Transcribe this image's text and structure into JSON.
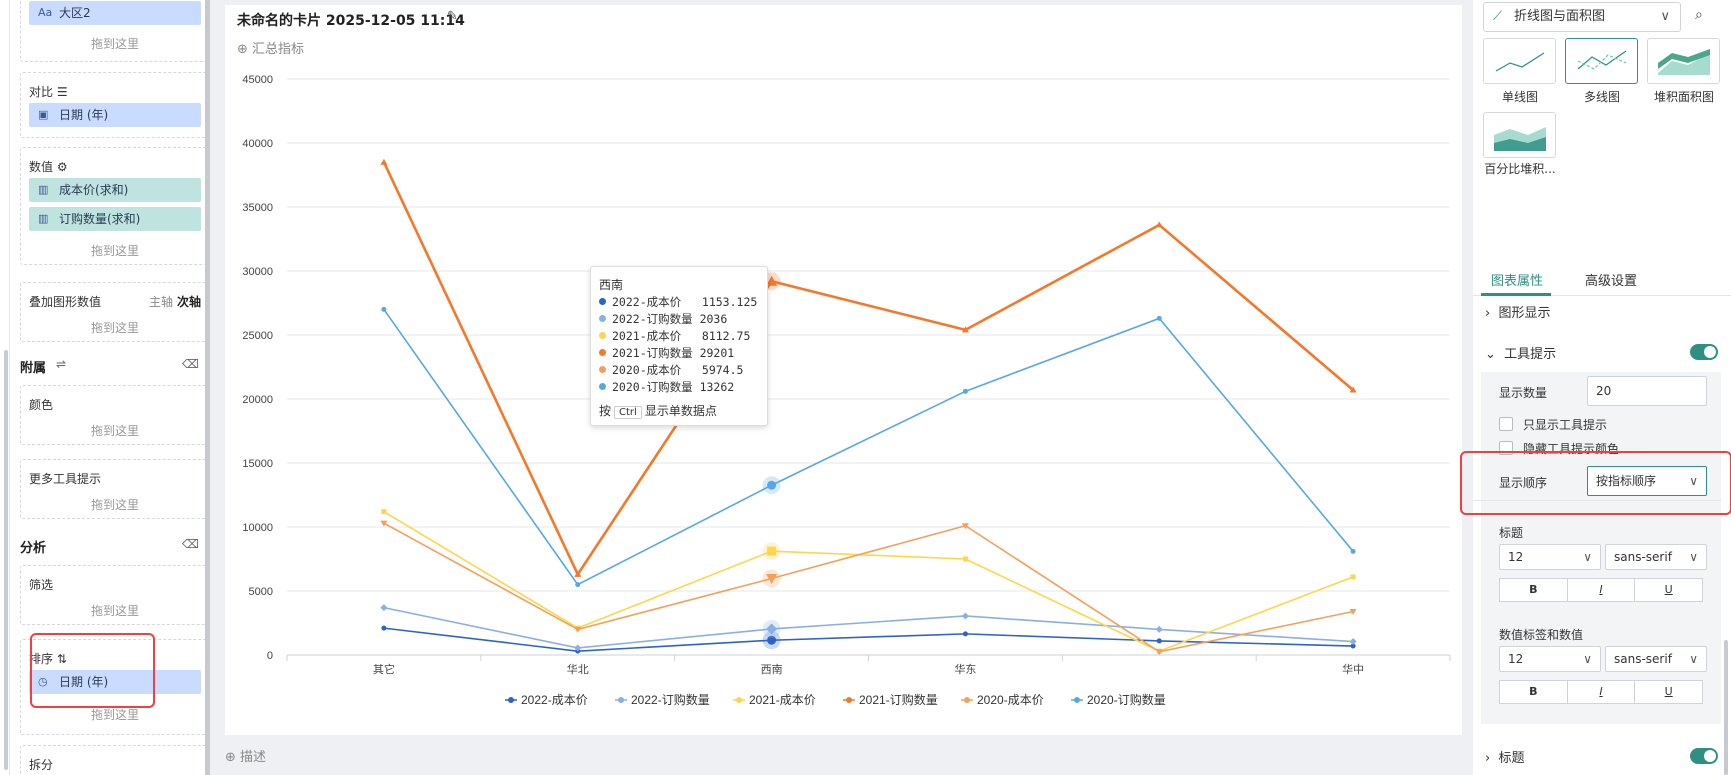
{
  "left": {
    "region_field": {
      "icon": "Aa",
      "label": "大区2",
      "drop": "拖到这里"
    },
    "compare": {
      "title": "对比",
      "pill": "日期 (年)"
    },
    "values": {
      "title": "数值",
      "pills": [
        "成本价(求和)",
        "订购数量(求和)"
      ],
      "drop": "拖到这里"
    },
    "overlay": {
      "title": "叠加图形数值",
      "main_axis": "主轴",
      "sub_axis": "次轴",
      "drop": "拖到这里"
    },
    "attach": {
      "title": "附属"
    },
    "color": {
      "title": "颜色",
      "drop": "拖到这里"
    },
    "more_tooltip": {
      "title": "更多工具提示",
      "drop": "拖到这里"
    },
    "analysis": {
      "title": "分析"
    },
    "filter": {
      "title": "筛选",
      "drop": "拖到这里"
    },
    "sort": {
      "title": "排序",
      "pill": "日期 (年)",
      "drop": "拖到这里"
    },
    "split": {
      "title": "拆分"
    }
  },
  "card": {
    "title": "未命名的卡片 2025-12-05 11:14",
    "summary": "汇总指标",
    "desc": "描述"
  },
  "tooltip": {
    "title": "西南",
    "rows": [
      {
        "label": "2022-成本价",
        "value": "1153.125",
        "color": "#2d62c8"
      },
      {
        "label": "2022-订购数量",
        "value": "2036",
        "color": "#8aaee8"
      },
      {
        "label": "2021-成本价",
        "value": "8112.75",
        "color": "#ffd54a"
      },
      {
        "label": "2021-订购数量",
        "value": "29201",
        "color": "#f5782a"
      },
      {
        "label": "2020-成本价",
        "value": "5974.5",
        "color": "#f5a05a"
      },
      {
        "label": "2020-订购数量",
        "value": "13262",
        "color": "#56a8e0"
      }
    ],
    "hint_pre": "按",
    "hint_key": "Ctrl",
    "hint_post": "显示单数据点"
  },
  "right": {
    "chart_type": "折线图与面积图",
    "thumbs": [
      "单线图",
      "多线图",
      "堆积面积图",
      "百分比堆积..."
    ],
    "tabs": [
      "图表属性",
      "高级设置"
    ],
    "graph_display": "图形显示",
    "tooltip_section": "工具提示",
    "show_count_label": "显示数量",
    "show_count_value": "20",
    "only_tooltip": "只显示工具提示",
    "hide_tooltip_color": "隐藏工具提示颜色",
    "order_label": "显示顺序",
    "order_value": "按指标顺序",
    "title_label": "标题",
    "title_size": "12",
    "title_font": "sans-serif",
    "value_label_label": "数值标签和数值",
    "value_size": "12",
    "value_font": "sans-serif",
    "bold": "B",
    "italic": "I",
    "underline": "U",
    "bottom_title": "标题"
  },
  "chart_data": {
    "type": "line",
    "categories": [
      "其它",
      "华北",
      "西南",
      "华东",
      "",
      "华中"
    ],
    "ylim": [
      0,
      45000
    ],
    "yticks": [
      0,
      5000,
      10000,
      15000,
      20000,
      25000,
      30000,
      35000,
      40000,
      45000
    ],
    "legend_position": "bottom",
    "grid": true,
    "series": [
      {
        "name": "2022-成本价",
        "color": "#2d62c8",
        "marker": "circle",
        "values": [
          2100,
          300,
          1153.125,
          1650,
          1100,
          700
        ]
      },
      {
        "name": "2022-订购数量",
        "color": "#8aaee8",
        "marker": "diamond",
        "values": [
          3700,
          550,
          2036,
          3050,
          2000,
          1050
        ]
      },
      {
        "name": "2021-成本价",
        "color": "#ffd54a",
        "marker": "square",
        "values": [
          11200,
          2100,
          8112.75,
          7500,
          300,
          6100
        ]
      },
      {
        "name": "2021-订购数量",
        "color": "#f5782a",
        "marker": "triangle",
        "values": [
          38500,
          6300,
          29201,
          25400,
          33600,
          20700
        ]
      },
      {
        "name": "2020-成本价",
        "color": "#f5a05a",
        "marker": "triangle-down",
        "values": [
          10300,
          2000,
          5974.5,
          10100,
          250,
          3400
        ]
      },
      {
        "name": "2020-订购数量",
        "color": "#56a8e0",
        "marker": "circle",
        "values": [
          27000,
          5500,
          13262,
          20600,
          26300,
          8100
        ]
      }
    ]
  }
}
